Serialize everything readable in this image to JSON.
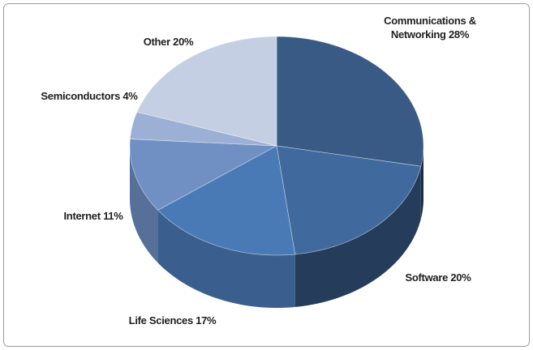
{
  "chart_data": {
    "type": "pie3d",
    "categories": [
      "Communications & Networking",
      "Software",
      "Life Sciences",
      "Internet",
      "Semiconductors",
      "Other"
    ],
    "values": [
      28,
      20,
      17,
      11,
      4,
      20
    ],
    "value_labels": [
      "28%",
      "20%",
      "17%",
      "11%",
      "4%",
      "20%"
    ],
    "colors": [
      "#395a85",
      "#40699e",
      "#4a7ab6",
      "#7090c4",
      "#9cb0d6",
      "#c4cfe3"
    ]
  }
}
